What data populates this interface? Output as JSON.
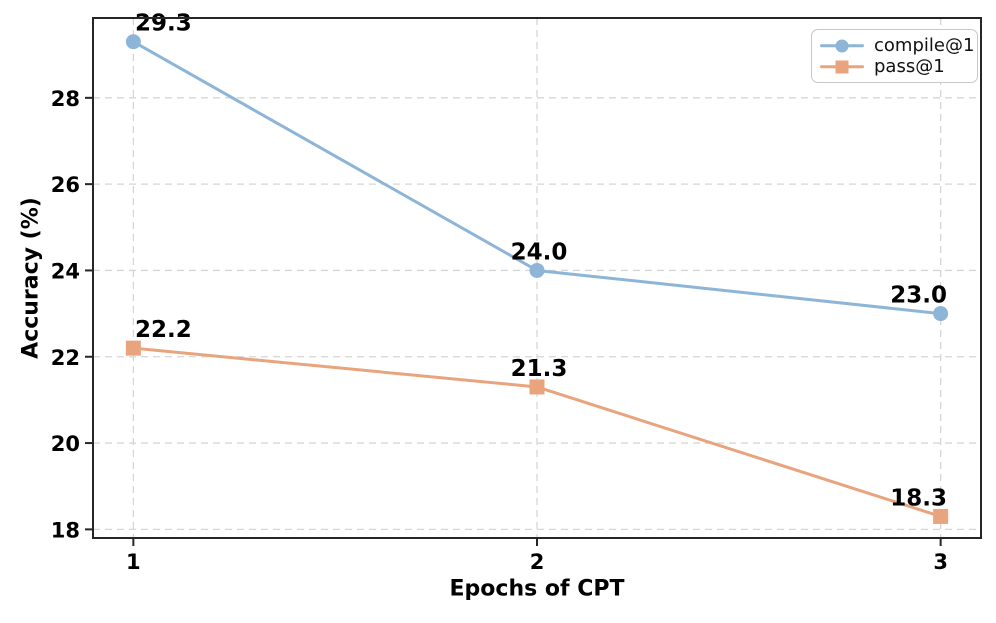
{
  "figure": {
    "background": "#ffffff",
    "spine_color": "#262626",
    "tick_color": "#262626",
    "grid_color": "#d6d6d6",
    "text_color": "#000000"
  },
  "chart_data": {
    "type": "line",
    "title": "",
    "xlabel": "Epochs of CPT",
    "ylabel": "Accuracy (%)",
    "x": [
      1,
      2,
      3
    ],
    "xtick_labels": [
      "1",
      "2",
      "3"
    ],
    "ytick_values": [
      18,
      20,
      22,
      24,
      26,
      28
    ],
    "ytick_labels": [
      "18",
      "20",
      "22",
      "24",
      "26",
      "28"
    ],
    "xlim": [
      0.9,
      3.1
    ],
    "ylim": [
      17.8,
      29.85
    ],
    "grid": "dashed-both-axes",
    "legend_position": "upper-right",
    "series": [
      {
        "name": "compile@1",
        "marker": "circle",
        "color": "#8CB5D8",
        "values": [
          29.3,
          24.0,
          23.0
        ],
        "point_labels": [
          "29.3",
          "24.0",
          "23.0"
        ]
      },
      {
        "name": "pass@1",
        "marker": "square",
        "color": "#E8A47D",
        "values": [
          22.2,
          21.3,
          18.3
        ],
        "point_labels": [
          "22.2",
          "21.3",
          "18.3"
        ]
      }
    ]
  }
}
